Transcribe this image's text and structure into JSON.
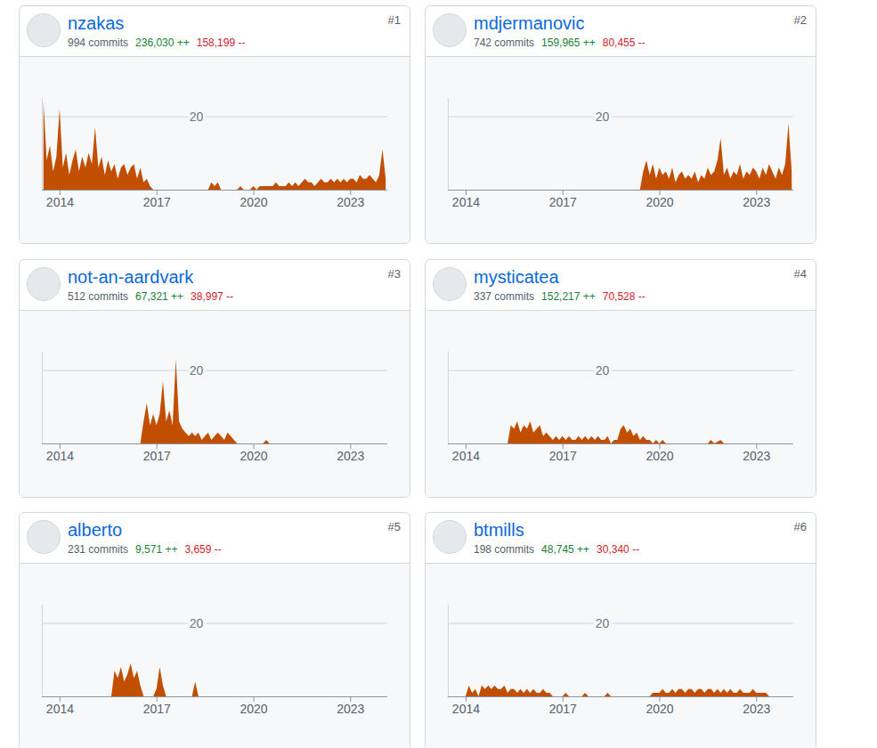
{
  "chart_data": [
    {
      "type": "area",
      "title": "nzakas",
      "rank": "#1",
      "commits": "994 commits",
      "additions": "236,030 ++",
      "deletions": "158,199 --",
      "color": "#c24e00",
      "grid": true,
      "xlim": [
        2013.45,
        2024.15
      ],
      "xticks": [
        2014,
        2017,
        2020,
        2023
      ],
      "ylim": [
        0,
        25
      ],
      "yticks": [
        20
      ],
      "x": [
        2013.5,
        2013.6,
        2013.7,
        2013.8,
        2013.9,
        2014.0,
        2014.1,
        2014.2,
        2014.3,
        2014.4,
        2014.5,
        2014.6,
        2014.7,
        2014.8,
        2014.9,
        2015.0,
        2015.1,
        2015.2,
        2015.3,
        2015.4,
        2015.5,
        2015.6,
        2015.7,
        2015.8,
        2015.9,
        2016.0,
        2016.1,
        2016.2,
        2016.3,
        2016.4,
        2016.5,
        2016.6,
        2016.7,
        2016.8,
        2016.9,
        2018.6,
        2018.7,
        2018.8,
        2018.9,
        2019.0,
        2019.5,
        2019.6,
        2019.7,
        2019.9,
        2020.0,
        2020.1,
        2020.2,
        2020.3,
        2020.4,
        2020.5,
        2020.6,
        2020.7,
        2020.8,
        2020.9,
        2021.0,
        2021.1,
        2021.2,
        2021.3,
        2021.4,
        2021.5,
        2021.6,
        2021.7,
        2021.8,
        2021.9,
        2022.0,
        2022.1,
        2022.2,
        2022.3,
        2022.4,
        2022.5,
        2022.6,
        2022.7,
        2022.8,
        2022.9,
        2023.0,
        2023.1,
        2023.2,
        2023.3,
        2023.4,
        2023.5,
        2023.6,
        2023.7,
        2023.8,
        2023.9,
        2024.0,
        2024.1
      ],
      "values": [
        24,
        8,
        12,
        5,
        9,
        22,
        6,
        10,
        4,
        8,
        11,
        5,
        9,
        6,
        10,
        7,
        17,
        6,
        9,
        4,
        8,
        5,
        7,
        3,
        6,
        7,
        4,
        6,
        7,
        3,
        6,
        2,
        3,
        1,
        0,
        0,
        2,
        1,
        2,
        0,
        0,
        1,
        0,
        0,
        1,
        0,
        1,
        1,
        1,
        1,
        1,
        2,
        1,
        1,
        1,
        2,
        1,
        2,
        1,
        2,
        3,
        2,
        2,
        1,
        2,
        3,
        2,
        2,
        3,
        2,
        3,
        2,
        3,
        2,
        3,
        3,
        2,
        4,
        3,
        3,
        4,
        3,
        2,
        4,
        11,
        3
      ]
    },
    {
      "type": "area",
      "title": "mdjermanovic",
      "rank": "#2",
      "commits": "742 commits",
      "additions": "159,965 ++",
      "deletions": "80,455 --",
      "color": "#c24e00",
      "grid": true,
      "xlim": [
        2013.45,
        2024.15
      ],
      "xticks": [
        2014,
        2017,
        2020,
        2023
      ],
      "ylim": [
        0,
        25
      ],
      "yticks": [
        20
      ],
      "x": [
        2019.4,
        2019.5,
        2019.6,
        2019.7,
        2019.8,
        2019.9,
        2020.0,
        2020.1,
        2020.2,
        2020.3,
        2020.4,
        2020.5,
        2020.6,
        2020.7,
        2020.8,
        2020.9,
        2021.0,
        2021.1,
        2021.2,
        2021.3,
        2021.4,
        2021.5,
        2021.6,
        2021.7,
        2021.8,
        2021.9,
        2022.0,
        2022.1,
        2022.2,
        2022.3,
        2022.4,
        2022.5,
        2022.6,
        2022.7,
        2022.8,
        2022.9,
        2023.0,
        2023.1,
        2023.2,
        2023.3,
        2023.4,
        2023.5,
        2023.6,
        2023.7,
        2023.8,
        2023.9,
        2024.0,
        2024.1
      ],
      "values": [
        0,
        5,
        8,
        4,
        7,
        3,
        6,
        4,
        5,
        3,
        6,
        2,
        4,
        5,
        3,
        4,
        3,
        5,
        2,
        4,
        3,
        6,
        4,
        5,
        8,
        14,
        4,
        6,
        3,
        5,
        4,
        7,
        3,
        5,
        4,
        6,
        5,
        3,
        6,
        4,
        7,
        5,
        3,
        6,
        4,
        7,
        18,
        5
      ]
    },
    {
      "type": "area",
      "title": "not-an-aardvark",
      "rank": "#3",
      "commits": "512 commits",
      "additions": "67,321 ++",
      "deletions": "38,997 --",
      "color": "#c24e00",
      "grid": true,
      "xlim": [
        2013.45,
        2024.15
      ],
      "xticks": [
        2014,
        2017,
        2020,
        2023
      ],
      "ylim": [
        0,
        25
      ],
      "yticks": [
        20
      ],
      "x": [
        2016.5,
        2016.6,
        2016.7,
        2016.8,
        2016.9,
        2017.0,
        2017.1,
        2017.2,
        2017.3,
        2017.4,
        2017.5,
        2017.6,
        2017.7,
        2017.8,
        2017.9,
        2018.0,
        2018.1,
        2018.2,
        2018.3,
        2018.4,
        2018.5,
        2018.6,
        2018.7,
        2018.8,
        2018.9,
        2019.0,
        2019.1,
        2019.2,
        2019.3,
        2019.4,
        2019.5,
        2020.3,
        2020.4,
        2020.5
      ],
      "values": [
        0,
        6,
        11,
        5,
        8,
        5,
        8,
        17,
        6,
        9,
        5,
        23,
        6,
        4,
        3,
        2,
        3,
        2,
        3,
        1,
        2,
        3,
        1,
        2,
        3,
        2,
        1,
        3,
        2,
        1,
        0,
        0,
        1,
        0
      ]
    },
    {
      "type": "area",
      "title": "mysticatea",
      "rank": "#4",
      "commits": "337 commits",
      "additions": "152,217 ++",
      "deletions": "70,528 --",
      "color": "#c24e00",
      "grid": true,
      "xlim": [
        2013.45,
        2024.15
      ],
      "xticks": [
        2014,
        2017,
        2020,
        2023
      ],
      "ylim": [
        0,
        25
      ],
      "yticks": [
        20
      ],
      "x": [
        2015.3,
        2015.4,
        2015.5,
        2015.6,
        2015.7,
        2015.8,
        2015.9,
        2016.0,
        2016.1,
        2016.2,
        2016.3,
        2016.4,
        2016.5,
        2016.6,
        2016.7,
        2016.8,
        2016.9,
        2017.0,
        2017.1,
        2017.2,
        2017.3,
        2017.4,
        2017.5,
        2017.6,
        2017.7,
        2017.8,
        2017.9,
        2018.0,
        2018.1,
        2018.2,
        2018.3,
        2018.4,
        2018.5,
        2018.6,
        2018.7,
        2018.8,
        2018.9,
        2019.0,
        2019.1,
        2019.2,
        2019.3,
        2019.4,
        2019.5,
        2019.6,
        2019.7,
        2019.8,
        2019.9,
        2020.0,
        2020.1,
        2020.2,
        2021.5,
        2021.6,
        2021.7,
        2021.9,
        2022.0
      ],
      "values": [
        0,
        5,
        4,
        6,
        3,
        5,
        4,
        6,
        3,
        4,
        5,
        2,
        3,
        2,
        1,
        2,
        1,
        2,
        1,
        2,
        1,
        1,
        2,
        1,
        2,
        1,
        2,
        1,
        2,
        1,
        1,
        2,
        0,
        1,
        1,
        4,
        5,
        3,
        4,
        2,
        3,
        1,
        2,
        1,
        1,
        0,
        1,
        0,
        1,
        0,
        0,
        1,
        0,
        1,
        0
      ]
    },
    {
      "type": "area",
      "title": "alberto",
      "rank": "#5",
      "commits": "231 commits",
      "additions": "9,571 ++",
      "deletions": "3,659 --",
      "color": "#c24e00",
      "grid": true,
      "xlim": [
        2013.45,
        2024.15
      ],
      "xticks": [
        2014,
        2017,
        2020,
        2023
      ],
      "ylim": [
        0,
        25
      ],
      "yticks": [
        20
      ],
      "x": [
        2015.6,
        2015.7,
        2015.8,
        2015.9,
        2016.0,
        2016.1,
        2016.2,
        2016.3,
        2016.4,
        2016.5,
        2016.6,
        2016.9,
        2017.0,
        2017.1,
        2017.2,
        2017.3,
        2018.1,
        2018.2,
        2018.3
      ],
      "values": [
        0,
        7,
        5,
        8,
        4,
        6,
        9,
        5,
        7,
        3,
        0,
        0,
        2,
        8,
        3,
        0,
        0,
        4,
        0
      ]
    },
    {
      "type": "area",
      "title": "btmills",
      "rank": "#6",
      "commits": "198 commits",
      "additions": "48,745 ++",
      "deletions": "30,340 --",
      "color": "#c24e00",
      "grid": true,
      "xlim": [
        2013.45,
        2024.15
      ],
      "xticks": [
        2014,
        2017,
        2020,
        2023
      ],
      "ylim": [
        0,
        25
      ],
      "yticks": [
        20
      ],
      "x": [
        2014.0,
        2014.1,
        2014.2,
        2014.3,
        2014.4,
        2014.5,
        2014.6,
        2014.7,
        2014.8,
        2014.9,
        2015.0,
        2015.1,
        2015.2,
        2015.3,
        2015.4,
        2015.5,
        2015.6,
        2015.7,
        2015.8,
        2015.9,
        2016.0,
        2016.1,
        2016.2,
        2016.3,
        2016.4,
        2016.5,
        2016.6,
        2016.7,
        2017.0,
        2017.1,
        2017.2,
        2017.6,
        2017.7,
        2017.8,
        2018.3,
        2018.4,
        2018.5,
        2019.7,
        2019.8,
        2019.9,
        2020.0,
        2020.1,
        2020.2,
        2020.3,
        2020.4,
        2020.5,
        2020.6,
        2020.7,
        2020.8,
        2020.9,
        2021.0,
        2021.1,
        2021.2,
        2021.3,
        2021.4,
        2021.5,
        2021.6,
        2021.7,
        2021.8,
        2021.9,
        2022.0,
        2022.1,
        2022.2,
        2022.3,
        2022.4,
        2022.5,
        2022.6,
        2022.7,
        2022.8,
        2022.9,
        2023.0,
        2023.1,
        2023.2,
        2023.3,
        2023.4
      ],
      "values": [
        0,
        3,
        1,
        2,
        0,
        3,
        2,
        3,
        2,
        3,
        2,
        2,
        3,
        1,
        2,
        2,
        1,
        2,
        1,
        2,
        1,
        2,
        1,
        1,
        2,
        1,
        1,
        0,
        0,
        1,
        0,
        0,
        1,
        0,
        0,
        1,
        0,
        0,
        1,
        1,
        1,
        2,
        1,
        1,
        2,
        1,
        2,
        2,
        1,
        2,
        2,
        1,
        2,
        2,
        1,
        2,
        2,
        1,
        2,
        1,
        2,
        1,
        2,
        1,
        1,
        2,
        1,
        1,
        1,
        2,
        1,
        1,
        1,
        1,
        0
      ]
    }
  ]
}
